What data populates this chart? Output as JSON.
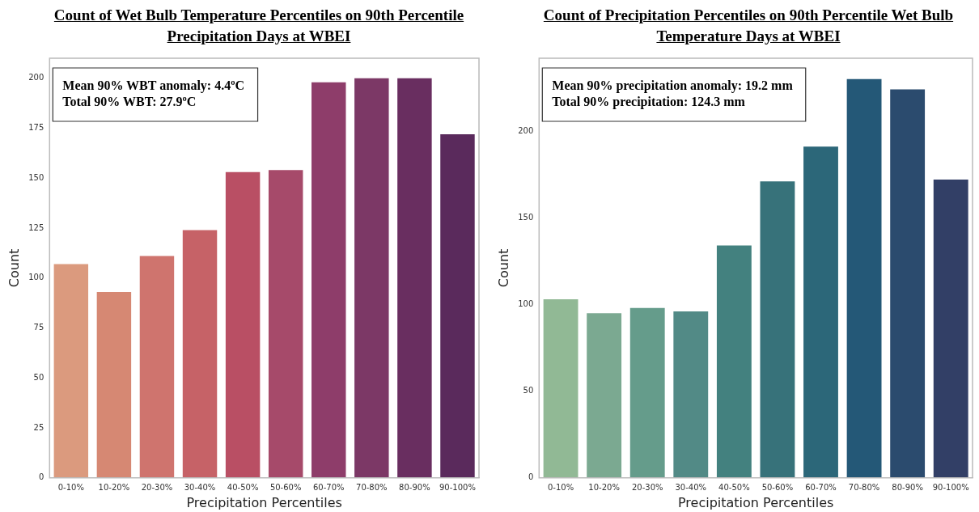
{
  "chart_data": [
    {
      "type": "bar",
      "title": "Count of Wet Bulb Temperature Percentiles on 90th Percentile Precipitation Days at WBEI",
      "xlabel": "Precipitation Percentiles",
      "ylabel": "Count",
      "categories": [
        "0-10%",
        "10-20%",
        "20-30%",
        "30-40%",
        "40-50%",
        "50-60%",
        "60-70%",
        "70-80%",
        "80-90%",
        "90-100%"
      ],
      "values": [
        107,
        93,
        111,
        124,
        153,
        154,
        198,
        200,
        200,
        172
      ],
      "colors": [
        "#db9a7e",
        "#d68873",
        "#cf746e",
        "#c66267",
        "#b94f64",
        "#a64a6a",
        "#8e3d6a",
        "#7c3866",
        "#692e60",
        "#5a2a5c"
      ],
      "ylim": [
        0,
        210
      ],
      "yticks": [
        0,
        25,
        50,
        75,
        100,
        125,
        150,
        175,
        200
      ],
      "grid": false,
      "legend": false,
      "annotations": [
        "Mean 90% WBT anomaly: 4.4ºC",
        "Total 90% WBT: 27.9ºC"
      ]
    },
    {
      "type": "bar",
      "title": "Count of Precipitation Percentiles on 90th Percentile Wet Bulb Temperature Days at WBEI",
      "xlabel": "Precipitation Percentiles",
      "ylabel": "Count",
      "categories": [
        "0-10%",
        "10-20%",
        "20-30%",
        "30-40%",
        "40-50%",
        "50-60%",
        "60-70%",
        "70-80%",
        "80-90%",
        "90-100%"
      ],
      "values": [
        103,
        95,
        98,
        96,
        134,
        171,
        191,
        230,
        224,
        172
      ],
      "colors": [
        "#91b995",
        "#7ba991",
        "#659c8b",
        "#528a86",
        "#43817f",
        "#37727a",
        "#2c6779",
        "#245877",
        "#2b4b6e",
        "#323f66"
      ],
      "ylim": [
        0,
        242
      ],
      "yticks": [
        0,
        50,
        100,
        150,
        200
      ],
      "grid": false,
      "legend": false,
      "annotations": [
        "Mean 90% precipitation anomaly: 19.2 mm",
        "Total 90% precipitation: 124.3 mm"
      ]
    }
  ]
}
